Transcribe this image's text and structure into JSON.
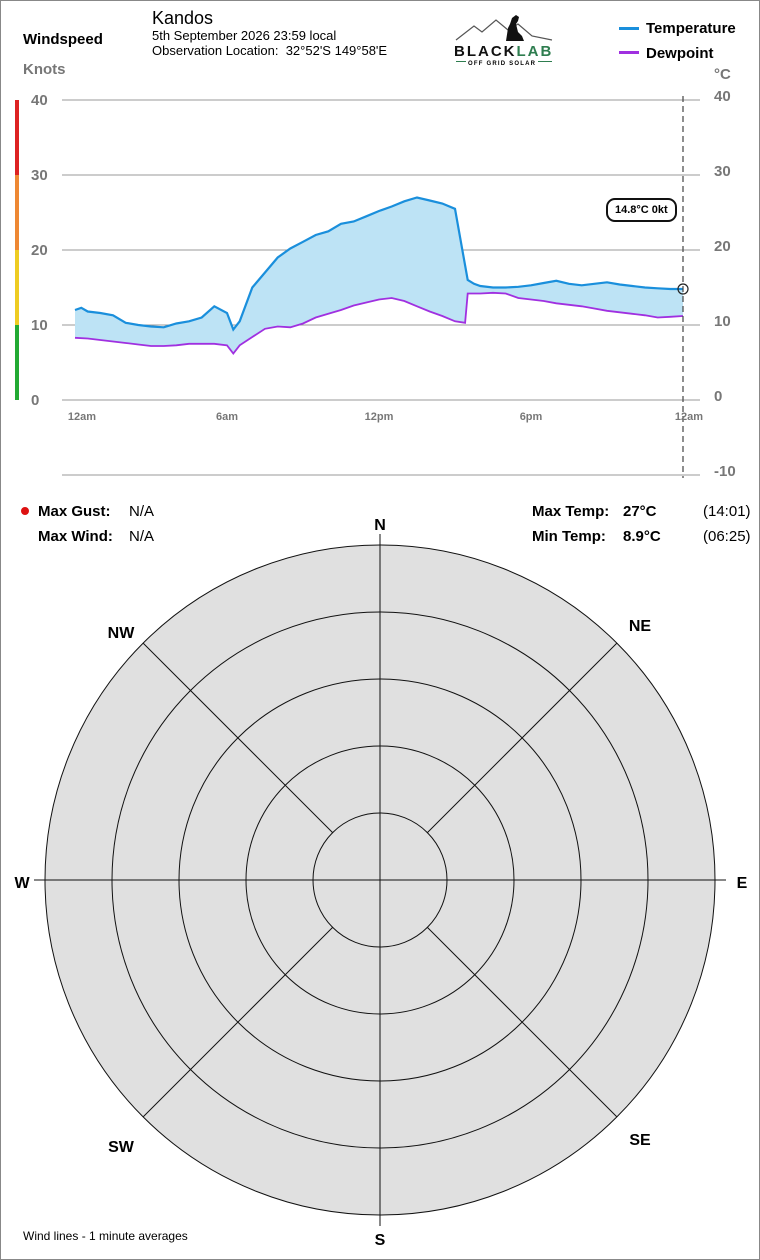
{
  "header": {
    "windspeed_label": "Windspeed",
    "knots_label": "Knots",
    "station": "Kandos",
    "datetime": "5th September 2026  23:59 local",
    "location_label": "Observation Location:",
    "location_value": "32°52'S 149°58'E",
    "celsius_label": "°C"
  },
  "logo": {
    "brand_dark": "BLACK",
    "brand_accent": "LAB",
    "tagline": "OFF GRID SOLAR"
  },
  "legend": [
    {
      "name": "Temperature",
      "color": "#1a8fdc"
    },
    {
      "name": "Dewpoint",
      "color": "#a030e0"
    }
  ],
  "tooltip": {
    "text": "14.8°C  0kt"
  },
  "stats": {
    "max_gust_label": "Max Gust:",
    "max_gust_value": "N/A",
    "max_wind_label": "Max Wind:",
    "max_wind_value": "N/A",
    "max_temp_label": "Max Temp:",
    "max_temp_value": "27°C",
    "max_temp_time": "(14:01)",
    "min_temp_label": "Min Temp:",
    "min_temp_value": "8.9°C",
    "min_temp_time": "(06:25)"
  },
  "compass": {
    "N": "N",
    "NE": "NE",
    "E": "E",
    "SE": "SE",
    "S": "S",
    "SW": "SW",
    "W": "W",
    "NW": "NW"
  },
  "footer": {
    "note": "Wind lines - 1 minute averages"
  },
  "colors": {
    "band_red": "#dd2222",
    "band_orange": "#ee8833",
    "band_yellow": "#eecc22",
    "band_green": "#22aa33",
    "fill": "#bde3f5",
    "rose_bg": "#e0e0e0"
  },
  "chart_data": {
    "type": "line",
    "x_ticks": [
      "12am",
      "6am",
      "12pm",
      "6pm",
      "12am"
    ],
    "y_left_ticks": [
      "40",
      "30",
      "20",
      "10",
      "0"
    ],
    "y_right_ticks": [
      "40",
      "30",
      "20",
      "10",
      "0",
      "-10"
    ],
    "ylim_right": [
      -10,
      40
    ],
    "ylim_left": [
      0,
      40
    ],
    "grid": true,
    "series": [
      {
        "name": "Temperature",
        "x_hours": [
          0,
          0.25,
          0.5,
          1,
          1.5,
          2,
          2.5,
          3,
          3.5,
          4,
          4.5,
          5,
          5.5,
          6,
          6.25,
          6.5,
          7,
          7.5,
          8,
          8.5,
          9,
          9.5,
          10,
          10.5,
          11,
          11.5,
          12,
          12.5,
          13,
          13.5,
          14,
          14.5,
          15,
          15.5,
          15.75,
          16,
          16.5,
          17,
          17.5,
          18,
          18.5,
          19,
          19.5,
          20,
          20.5,
          21,
          21.5,
          22,
          22.5,
          23,
          23.5,
          24
        ],
        "values": [
          12,
          12.3,
          11.8,
          11.6,
          11.3,
          10.3,
          10,
          9.8,
          9.7,
          10.2,
          10.5,
          11,
          12.5,
          11.6,
          9.4,
          10.5,
          15,
          17,
          19,
          20.2,
          21.1,
          22,
          22.5,
          23.5,
          23.8,
          24.5,
          25.2,
          25.8,
          26.5,
          27,
          26.6,
          26.2,
          25.5,
          16,
          15.5,
          15.2,
          15,
          15,
          15.1,
          15.3,
          15.6,
          15.9,
          15.5,
          15.3,
          15.5,
          15.7,
          15.4,
          15.2,
          15,
          14.9,
          14.8,
          14.8
        ]
      },
      {
        "name": "Dewpoint",
        "x_hours": [
          0,
          0.5,
          1,
          1.5,
          2,
          2.5,
          3,
          3.5,
          4,
          4.5,
          5,
          5.5,
          6,
          6.25,
          6.5,
          7,
          7.5,
          8,
          8.5,
          9,
          9.5,
          10,
          10.5,
          11,
          11.5,
          12,
          12.5,
          13,
          13.5,
          14,
          14.5,
          15,
          15.4,
          15.5,
          16,
          16.5,
          17,
          17.5,
          18,
          18.5,
          19,
          19.5,
          20,
          20.5,
          21,
          21.5,
          22,
          22.5,
          23,
          23.5,
          24
        ],
        "values": [
          8.3,
          8.2,
          8,
          7.8,
          7.6,
          7.4,
          7.2,
          7.2,
          7.3,
          7.5,
          7.5,
          7.5,
          7.3,
          6.2,
          7.3,
          8.4,
          9.5,
          9.8,
          9.7,
          10.2,
          11,
          11.5,
          12,
          12.6,
          13,
          13.4,
          13.6,
          13.2,
          12.5,
          11.8,
          11.2,
          10.5,
          10.3,
          14.2,
          14.2,
          14.3,
          14.2,
          13.6,
          13.4,
          13.2,
          12.9,
          12.7,
          12.5,
          12.2,
          11.9,
          11.7,
          11.5,
          11.3,
          11,
          11.1,
          11.2
        ]
      }
    ]
  }
}
